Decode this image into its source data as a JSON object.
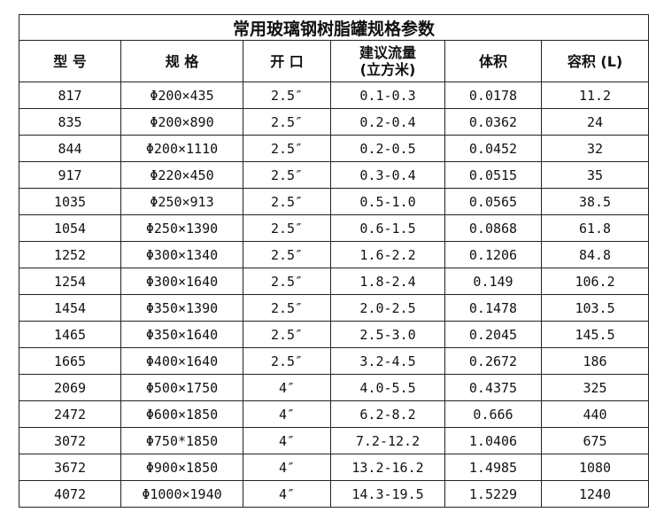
{
  "title": "常用玻璃钢树脂罐规格参数",
  "headers": [
    "型 号",
    "规 格",
    "开 口",
    "建议流量\n(立方米)",
    "体积",
    "容积 (L)"
  ],
  "rows": [
    [
      "817",
      "Φ200×435",
      "2.5″",
      "0.1-0.3",
      "0.0178",
      "11.2"
    ],
    [
      "835",
      "Φ200×890",
      "2.5″",
      "0.2-0.4",
      "0.0362",
      "24"
    ],
    [
      "844",
      "Φ200×1110",
      "2.5″",
      "0.2-0.5",
      "0.0452",
      "32"
    ],
    [
      "917",
      "Φ220×450",
      "2.5″",
      "0.3-0.4",
      "0.0515",
      "35"
    ],
    [
      "1035",
      "Φ250×913",
      "2.5″",
      "0.5-1.0",
      "0.0565",
      "38.5"
    ],
    [
      "1054",
      "Φ250×1390",
      "2.5″",
      "0.6-1.5",
      "0.0868",
      "61.8"
    ],
    [
      "1252",
      "Φ300×1340",
      "2.5″",
      "1.6-2.2",
      "0.1206",
      "84.8"
    ],
    [
      "1254",
      "Φ300×1640",
      "2.5″",
      "1.8-2.4",
      "0.149",
      "106.2"
    ],
    [
      "1454",
      "Φ350×1390",
      "2.5″",
      "2.0-2.5",
      "0.1478",
      "103.5"
    ],
    [
      "1465",
      "Φ350×1640",
      "2.5″",
      "2.5-3.0",
      "0.2045",
      "145.5"
    ],
    [
      "1665",
      "Φ400×1640",
      "2.5″",
      "3.2-4.5",
      "0.2672",
      "186"
    ],
    [
      "2069",
      "Φ500×1750",
      "4″",
      "4.0-5.5",
      "0.4375",
      "325"
    ],
    [
      "2472",
      "Φ600×1850",
      "4″",
      "6.2-8.2",
      "0.666",
      "440"
    ],
    [
      "3072",
      "Φ750*1850",
      "4″",
      "7.2-12.2",
      "1.0406",
      "675"
    ],
    [
      "3672",
      "Φ900×1850",
      "4″",
      "13.2-16.2",
      "1.4985",
      "1080"
    ],
    [
      "4072",
      "Φ1000×1940",
      "4″",
      "14.3-19.5",
      "1.5229",
      "1240"
    ]
  ]
}
